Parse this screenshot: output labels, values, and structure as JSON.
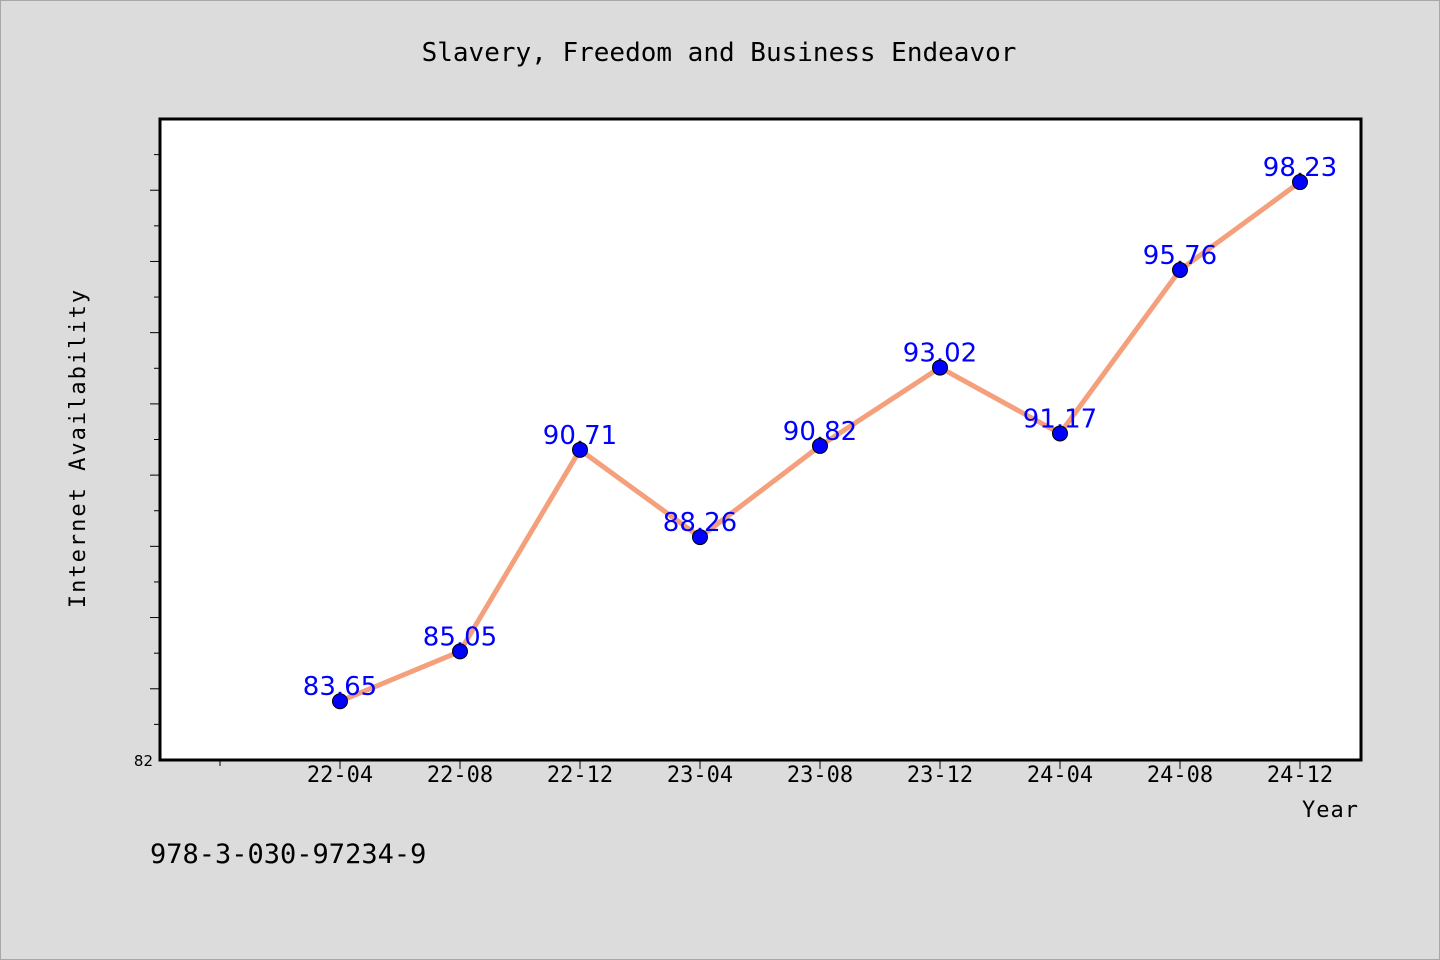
{
  "colors": {
    "background": "#dcdcdc",
    "plot_background": "#ffffff",
    "line": "#f4a07c",
    "marker": "#0000ff",
    "data_label": "#0000ff"
  },
  "footer": {
    "code": "978-3-030-97234-9"
  },
  "chart_data": {
    "type": "line",
    "title": "Slavery, Freedom and Business Endeavor",
    "xlabel": "Year",
    "ylabel": "Internet Availability",
    "categories": [
      "22-04",
      "22-08",
      "22-12",
      "23-04",
      "23-08",
      "23-12",
      "24-04",
      "24-08",
      "24-12"
    ],
    "series": [
      {
        "values": [
          83.65,
          85.05,
          90.71,
          88.26,
          90.82,
          93.02,
          91.17,
          95.76,
          98.23
        ],
        "labels": [
          "83.65",
          "85.05",
          "90.71",
          "88.26",
          "90.82",
          "93.02",
          "91.17",
          "95.76",
          "98.23"
        ]
      }
    ],
    "ylim": [
      82,
      100
    ],
    "y_tick_labels": [
      "82"
    ],
    "grid": false,
    "legend": "none"
  }
}
